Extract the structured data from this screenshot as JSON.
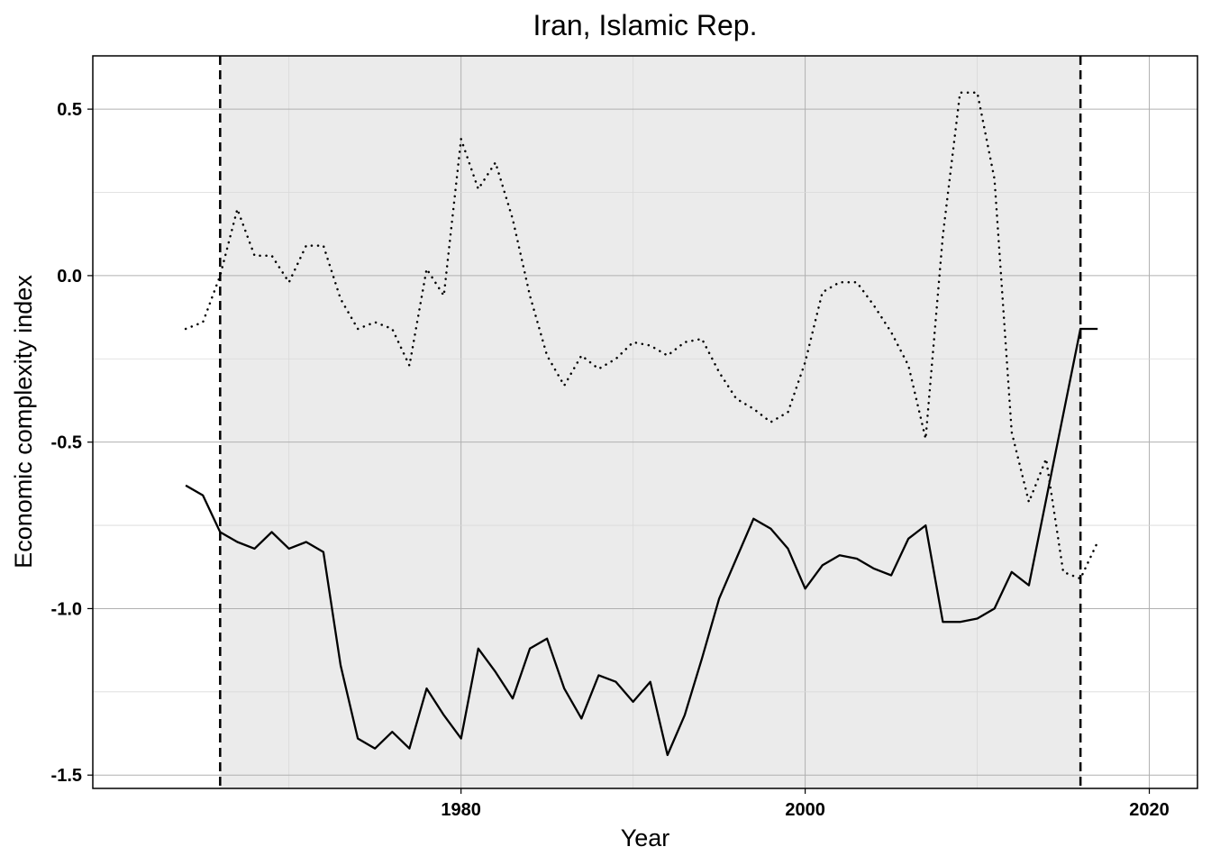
{
  "chart_data": {
    "type": "line",
    "title": "Iran, Islamic Rep.",
    "xlabel": "Year",
    "ylabel": "Economic complexity index",
    "xlim": [
      1958.6,
      2022.8
    ],
    "ylim": [
      -1.54,
      0.66
    ],
    "x_ticks": [
      1980,
      2000,
      2020
    ],
    "x_tick_labels": [
      "1980",
      "2000",
      "2020"
    ],
    "y_ticks": [
      0.5,
      0.0,
      -0.5,
      -1.0,
      -1.5
    ],
    "y_tick_labels": [
      "0.5",
      "0.0",
      "-0.5",
      "-1.0",
      "-1.5"
    ],
    "grid": true,
    "shaded_region": {
      "x": [
        1966,
        2016
      ],
      "boundary_style": "dashed"
    },
    "series": [
      {
        "style": "solid",
        "x": [
          1964,
          1965,
          1966,
          1967,
          1968,
          1969,
          1970,
          1971,
          1972,
          1973,
          1974,
          1975,
          1976,
          1977,
          1978,
          1979,
          1980,
          1981,
          1982,
          1983,
          1984,
          1985,
          1986,
          1987,
          1988,
          1989,
          1990,
          1991,
          1992,
          1993,
          1994,
          1995,
          1996,
          1997,
          1998,
          1999,
          2000,
          2001,
          2002,
          2003,
          2004,
          2005,
          2006,
          2007,
          2008,
          2009,
          2010,
          2011,
          2012,
          2013,
          2016,
          2017
        ],
        "values": [
          -0.63,
          -0.66,
          -0.77,
          -0.8,
          -0.82,
          -0.77,
          -0.82,
          -0.8,
          -0.83,
          -1.17,
          -1.39,
          -1.42,
          -1.37,
          -1.42,
          -1.24,
          -1.32,
          -1.39,
          -1.12,
          -1.19,
          -1.27,
          -1.12,
          -1.09,
          -1.24,
          -1.33,
          -1.2,
          -1.22,
          -1.28,
          -1.22,
          -1.44,
          -1.32,
          -1.15,
          -0.97,
          -0.85,
          -0.73,
          -0.76,
          -0.82,
          -0.94,
          -0.87,
          -0.84,
          -0.85,
          -0.88,
          -0.9,
          -0.79,
          -0.75,
          -1.04,
          -1.04,
          -1.03,
          -1.0,
          -0.89,
          -0.93,
          -0.16,
          -0.16
        ]
      },
      {
        "style": "dotted",
        "x": [
          1964,
          1965,
          1966,
          1967,
          1968,
          1969,
          1970,
          1971,
          1972,
          1973,
          1974,
          1975,
          1976,
          1977,
          1978,
          1979,
          1980,
          1981,
          1982,
          1983,
          1984,
          1985,
          1986,
          1987,
          1988,
          1989,
          1990,
          1991,
          1992,
          1993,
          1994,
          1995,
          1996,
          1997,
          1998,
          1999,
          2000,
          2001,
          2002,
          2003,
          2004,
          2005,
          2006,
          2007,
          2008,
          2009,
          2010,
          2011,
          2012,
          2013,
          2014,
          2015,
          2016,
          2017
        ],
        "values": [
          -0.16,
          -0.14,
          0.0,
          0.2,
          0.06,
          0.06,
          -0.02,
          0.09,
          0.09,
          -0.07,
          -0.16,
          -0.14,
          -0.16,
          -0.27,
          0.02,
          -0.06,
          0.41,
          0.26,
          0.34,
          0.17,
          -0.06,
          -0.24,
          -0.33,
          -0.24,
          -0.28,
          -0.25,
          -0.2,
          -0.21,
          -0.24,
          -0.2,
          -0.19,
          -0.29,
          -0.37,
          -0.4,
          -0.44,
          -0.41,
          -0.26,
          -0.05,
          -0.02,
          -0.02,
          -0.09,
          -0.17,
          -0.27,
          -0.49,
          0.12,
          0.55,
          0.55,
          0.29,
          -0.47,
          -0.68,
          -0.55,
          -0.89,
          -0.91,
          -0.8
        ]
      }
    ]
  }
}
